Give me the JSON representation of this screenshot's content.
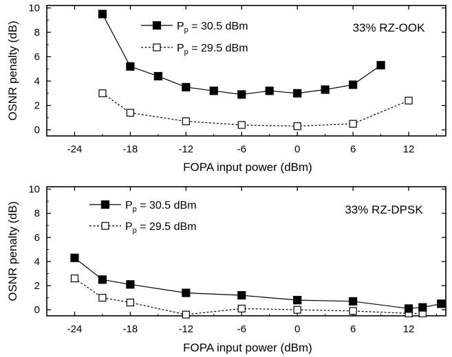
{
  "chart_data": [
    {
      "type": "line",
      "annotation": "33% RZ-OOK",
      "xlabel": "FOPA input power (dBm)",
      "ylabel": "OSNR penalty (dB)",
      "xlim": [
        -27,
        16
      ],
      "ylim": [
        -0.5,
        10.2
      ],
      "xticks": [
        -24,
        -18,
        -12,
        -6,
        0,
        6,
        12
      ],
      "yticks": [
        0,
        2,
        4,
        6,
        8,
        10
      ],
      "legend_position": "top-left",
      "series": [
        {
          "name": "P_p = 30.5 dBm",
          "legend_main": "P",
          "legend_sub": "p",
          "legend_rest": " = 30.5 dBm",
          "marker": "filled-square",
          "line": "solid",
          "x": [
            -21,
            -18,
            -15,
            -12,
            -9,
            -6,
            -3,
            0,
            3,
            6,
            9
          ],
          "y": [
            9.5,
            5.2,
            4.4,
            3.5,
            3.2,
            2.9,
            3.2,
            3.0,
            3.3,
            3.7,
            5.3
          ]
        },
        {
          "name": "P_p = 29.5 dBm",
          "legend_main": "P",
          "legend_sub": "p",
          "legend_rest": " = 29.5 dBm",
          "marker": "open-square",
          "line": "dashed",
          "x": [
            -21,
            -18,
            -12,
            -6,
            0,
            6,
            12
          ],
          "y": [
            3.0,
            1.4,
            0.7,
            0.4,
            0.3,
            0.5,
            2.4
          ]
        }
      ]
    },
    {
      "type": "line",
      "annotation": "33% RZ-DPSK",
      "xlabel": "FOPA input power (dBm)",
      "ylabel": "OSNR penalty (dB)",
      "xlim": [
        -27,
        16
      ],
      "ylim": [
        -0.5,
        10.2
      ],
      "xticks": [
        -24,
        -18,
        -12,
        -6,
        0,
        6,
        12
      ],
      "yticks": [
        0,
        2,
        4,
        6,
        8,
        10
      ],
      "legend_position": "top-left",
      "series": [
        {
          "name": "P_p = 30.5 dBm",
          "legend_main": "P",
          "legend_sub": "p",
          "legend_rest": " = 30.5 dBm",
          "marker": "filled-square",
          "line": "solid",
          "x": [
            -24,
            -21,
            -18,
            -12,
            -6,
            0,
            6,
            12,
            13.5,
            15.5
          ],
          "y": [
            4.3,
            2.5,
            2.1,
            1.4,
            1.2,
            0.8,
            0.7,
            0.1,
            0.2,
            0.5
          ]
        },
        {
          "name": "P_p = 29.5 dBm",
          "legend_main": "P",
          "legend_sub": "p",
          "legend_rest": " = 29.5 dBm",
          "marker": "open-square",
          "line": "dashed",
          "x": [
            -24,
            -21,
            -18,
            -12,
            -6,
            0,
            6,
            12,
            13.5
          ],
          "y": [
            2.6,
            1.0,
            0.6,
            -0.4,
            0.1,
            0.0,
            -0.1,
            -0.3,
            -0.3
          ]
        }
      ]
    }
  ]
}
